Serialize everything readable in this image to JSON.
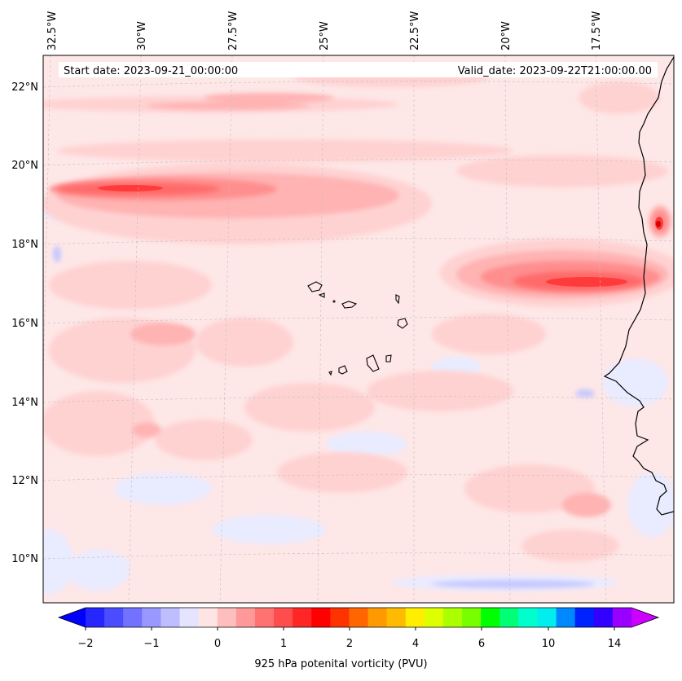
{
  "header": {
    "start_date": "Start date: 2023-09-21_00:00:00",
    "valid_date": "Valid_date: 2023-09-22T21:00:00.00"
  },
  "lon_labels": [
    "32.5°W",
    "30°W",
    "27.5°W",
    "25°W",
    "22.5°W",
    "20°W",
    "17.5°W"
  ],
  "lat_labels": [
    "22°N",
    "20°N",
    "18°N",
    "16°N",
    "14°N",
    "12°N",
    "10°N"
  ],
  "colorbar": {
    "title": "925 hPa potenital vorticity (PVU)",
    "tick_labels": [
      "−2",
      "−1",
      "0",
      "1",
      "2",
      "4",
      "6",
      "10",
      "14"
    ],
    "colors": [
      "#0000ff",
      "#2626ff",
      "#4c4cff",
      "#7272ff",
      "#9898ff",
      "#bebeff",
      "#e4e4ff",
      "#ffe4e4",
      "#ffbebe",
      "#ff9898",
      "#ff7272",
      "#ff4c4c",
      "#ff2626",
      "#ff0000",
      "#ff3300",
      "#ff6600",
      "#ff9900",
      "#ffbb00",
      "#ffee00",
      "#ddff00",
      "#aaff00",
      "#77ff00",
      "#00ff00",
      "#00ff77",
      "#00ffcc",
      "#00eeee",
      "#0088ff",
      "#0022ff",
      "#3300ff",
      "#9900ff",
      "#cc00ff"
    ]
  },
  "map": {
    "background_color": "#fee7e7",
    "coastline_color": "#000000",
    "gridlines": true
  }
}
